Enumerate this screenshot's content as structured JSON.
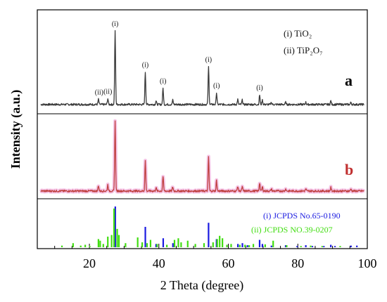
{
  "chart_data": {
    "type": "line",
    "xlabel": "2 Theta (degree)",
    "ylabel": "Intensity (a.u.)",
    "xlim": [
      5,
      100
    ],
    "x_ticks": [
      20,
      40,
      60,
      80,
      100
    ],
    "x_tick_labels": [
      "20",
      "40",
      "60",
      "80",
      "100"
    ],
    "grid": false,
    "legend": [
      {
        "id": "i",
        "text": "(i)  TiO₂"
      },
      {
        "id": "ii",
        "text": "(ii) TiP₂O₇"
      }
    ],
    "series": [
      {
        "name": "a",
        "color": "#3a3a3a",
        "baseline": 0.05,
        "peaks": [
          {
            "x": 22.6,
            "y": 0.07
          },
          {
            "x": 25.3,
            "y": 0.08
          },
          {
            "x": 27.4,
            "y": 1.0
          },
          {
            "x": 36.1,
            "y": 0.44
          },
          {
            "x": 39.2,
            "y": 0.05
          },
          {
            "x": 41.2,
            "y": 0.22
          },
          {
            "x": 44.0,
            "y": 0.06
          },
          {
            "x": 54.3,
            "y": 0.51
          },
          {
            "x": 56.6,
            "y": 0.16
          },
          {
            "x": 62.7,
            "y": 0.07
          },
          {
            "x": 64.0,
            "y": 0.06
          },
          {
            "x": 69.0,
            "y": 0.13
          },
          {
            "x": 69.8,
            "y": 0.06
          },
          {
            "x": 72.4,
            "y": 0.03
          },
          {
            "x": 76.5,
            "y": 0.03
          },
          {
            "x": 82.3,
            "y": 0.03
          },
          {
            "x": 89.5,
            "y": 0.05
          },
          {
            "x": 95.3,
            "y": 0.03
          }
        ]
      },
      {
        "name": "b",
        "color": "#c04040",
        "halo": "#f2b6e0",
        "baseline": 0.05,
        "peaks": [
          {
            "x": 22.6,
            "y": 0.08
          },
          {
            "x": 25.3,
            "y": 0.09
          },
          {
            "x": 27.4,
            "y": 1.0
          },
          {
            "x": 36.1,
            "y": 0.43
          },
          {
            "x": 39.2,
            "y": 0.05
          },
          {
            "x": 41.2,
            "y": 0.21
          },
          {
            "x": 44.0,
            "y": 0.06
          },
          {
            "x": 54.3,
            "y": 0.49
          },
          {
            "x": 56.6,
            "y": 0.15
          },
          {
            "x": 62.7,
            "y": 0.07
          },
          {
            "x": 64.0,
            "y": 0.06
          },
          {
            "x": 69.0,
            "y": 0.12
          },
          {
            "x": 69.8,
            "y": 0.06
          },
          {
            "x": 72.4,
            "y": 0.03
          },
          {
            "x": 76.5,
            "y": 0.03
          },
          {
            "x": 82.3,
            "y": 0.03
          },
          {
            "x": 89.5,
            "y": 0.05
          },
          {
            "x": 95.3,
            "y": 0.03
          }
        ]
      }
    ],
    "curve_labels": [
      "a",
      "b"
    ],
    "peak_labels": [
      {
        "x": 22.8,
        "text": "(ii)"
      },
      {
        "x": 25.3,
        "text": "(ii)"
      },
      {
        "x": 27.4,
        "text": "(i)"
      },
      {
        "x": 36.1,
        "text": "(i)"
      },
      {
        "x": 41.2,
        "text": "(i)"
      },
      {
        "x": 54.3,
        "text": "(i)"
      },
      {
        "x": 56.6,
        "text": "(i)"
      },
      {
        "x": 69.0,
        "text": "(i)"
      }
    ],
    "references": [
      {
        "text": "(i) JCPDS No.65-0190",
        "color": "#1a1ae0",
        "lines": [
          {
            "x": 27.45,
            "y": 1.0
          },
          {
            "x": 36.1,
            "y": 0.5
          },
          {
            "x": 39.2,
            "y": 0.08
          },
          {
            "x": 41.25,
            "y": 0.22
          },
          {
            "x": 44.05,
            "y": 0.1
          },
          {
            "x": 54.3,
            "y": 0.6
          },
          {
            "x": 56.6,
            "y": 0.2
          },
          {
            "x": 62.75,
            "y": 0.08
          },
          {
            "x": 64.05,
            "y": 0.1
          },
          {
            "x": 65.5,
            "y": 0.05
          },
          {
            "x": 69.0,
            "y": 0.18
          },
          {
            "x": 69.8,
            "y": 0.08
          },
          {
            "x": 72.4,
            "y": 0.04
          },
          {
            "x": 76.5,
            "y": 0.05
          },
          {
            "x": 79.8,
            "y": 0.03
          },
          {
            "x": 82.3,
            "y": 0.05
          },
          {
            "x": 84.2,
            "y": 0.03
          },
          {
            "x": 87.5,
            "y": 0.03
          },
          {
            "x": 89.5,
            "y": 0.06
          },
          {
            "x": 90.7,
            "y": 0.03
          },
          {
            "x": 95.3,
            "y": 0.04
          },
          {
            "x": 97.0,
            "y": 0.04
          }
        ]
      },
      {
        "text": "(ii) JCPDS NO.39-0207",
        "color": "#40dd10",
        "lines": [
          {
            "x": 12.1,
            "y": 0.04
          },
          {
            "x": 15.3,
            "y": 0.1
          },
          {
            "x": 17.5,
            "y": 0.04
          },
          {
            "x": 18.8,
            "y": 0.06
          },
          {
            "x": 20.1,
            "y": 0.03
          },
          {
            "x": 22.6,
            "y": 0.2
          },
          {
            "x": 23.1,
            "y": 0.16
          },
          {
            "x": 24.0,
            "y": 0.08
          },
          {
            "x": 25.3,
            "y": 0.26
          },
          {
            "x": 26.4,
            "y": 0.3
          },
          {
            "x": 27.1,
            "y": 0.95
          },
          {
            "x": 28.0,
            "y": 0.45
          },
          {
            "x": 28.5,
            "y": 0.3
          },
          {
            "x": 30.4,
            "y": 0.1
          },
          {
            "x": 33.9,
            "y": 0.24
          },
          {
            "x": 35.2,
            "y": 0.12
          },
          {
            "x": 36.6,
            "y": 0.1
          },
          {
            "x": 37.6,
            "y": 0.18
          },
          {
            "x": 39.5,
            "y": 0.08
          },
          {
            "x": 42.3,
            "y": 0.06
          },
          {
            "x": 44.5,
            "y": 0.18
          },
          {
            "x": 45.6,
            "y": 0.22
          },
          {
            "x": 46.4,
            "y": 0.12
          },
          {
            "x": 48.3,
            "y": 0.16
          },
          {
            "x": 50.5,
            "y": 0.08
          },
          {
            "x": 53.0,
            "y": 0.1
          },
          {
            "x": 55.6,
            "y": 0.12
          },
          {
            "x": 56.8,
            "y": 0.2
          },
          {
            "x": 57.5,
            "y": 0.28
          },
          {
            "x": 58.3,
            "y": 0.22
          },
          {
            "x": 59.6,
            "y": 0.06
          },
          {
            "x": 60.8,
            "y": 0.08
          },
          {
            "x": 63.3,
            "y": 0.06
          },
          {
            "x": 64.8,
            "y": 0.06
          },
          {
            "x": 66.0,
            "y": 0.05
          },
          {
            "x": 67.2,
            "y": 0.08
          },
          {
            "x": 70.6,
            "y": 0.07
          },
          {
            "x": 72.9,
            "y": 0.16
          },
          {
            "x": 76.8,
            "y": 0.05
          },
          {
            "x": 80.9,
            "y": 0.03
          },
          {
            "x": 83.7,
            "y": 0.04
          },
          {
            "x": 87.0,
            "y": 0.03
          },
          {
            "x": 92.2,
            "y": 0.03
          }
        ]
      }
    ]
  }
}
